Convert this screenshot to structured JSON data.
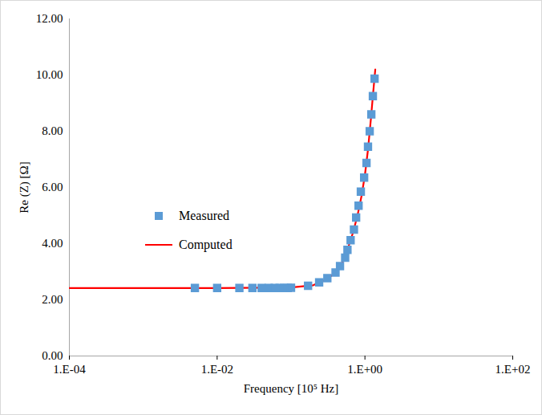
{
  "chart_data": {
    "type": "scatter",
    "x_label": "Frequency [10⁵ Hz]",
    "y_label": "Re (Z) [Ω]",
    "log": "x",
    "grid": false,
    "legend": "left",
    "xlim": [
      0.0001,
      100
    ],
    "xticks": [
      {
        "value": 0.0001,
        "label": "1.E-04"
      },
      {
        "value": 0.01,
        "label": "1.E-02"
      },
      {
        "value": 1,
        "label": "1.E+00"
      },
      {
        "value": 100,
        "label": "1.E+02"
      }
    ],
    "ylim": [
      0,
      12
    ],
    "yticks": [
      {
        "value": 0,
        "label": "0.00"
      },
      {
        "value": 2,
        "label": "2.00"
      },
      {
        "value": 4,
        "label": "4.00"
      },
      {
        "value": 6,
        "label": "6.00"
      },
      {
        "value": 8,
        "label": "8.00"
      },
      {
        "value": 10,
        "label": "10.00"
      },
      {
        "value": 12,
        "label": "12.00"
      }
    ],
    "series": [
      {
        "name": "Measured",
        "type": "scatter",
        "marker": "square",
        "color": "#5b9bd5",
        "x": [
          0.005,
          0.01,
          0.02,
          0.03,
          0.04,
          0.05,
          0.06,
          0.07,
          0.08,
          0.09,
          0.1,
          0.17,
          0.24,
          0.31,
          0.4,
          0.46,
          0.54,
          0.58,
          0.64,
          0.71,
          0.76,
          0.82,
          0.88,
          0.975,
          1.05,
          1.1,
          1.16,
          1.22,
          1.28,
          1.35
        ],
        "values": [
          2.42,
          2.42,
          2.42,
          2.42,
          2.42,
          2.42,
          2.42,
          2.42,
          2.42,
          2.42,
          2.43,
          2.5,
          2.62,
          2.77,
          2.97,
          3.2,
          3.5,
          3.78,
          4.12,
          4.5,
          4.93,
          5.35,
          5.85,
          6.35,
          6.87,
          7.45,
          8.0,
          8.6,
          9.25,
          9.87
        ]
      },
      {
        "name": "Computed",
        "type": "line",
        "line_style": "solid",
        "color": "#ff0000",
        "x": [
          0.0001,
          0.01,
          0.1,
          0.2,
          0.3,
          0.4,
          0.5,
          0.6,
          0.7,
          0.8,
          0.9,
          1.0,
          1.1,
          1.2,
          1.3,
          1.38
        ],
        "values": [
          2.42,
          2.42,
          2.44,
          2.52,
          2.72,
          2.97,
          3.35,
          3.9,
          4.45,
          5.05,
          5.7,
          6.45,
          7.35,
          8.4,
          9.45,
          10.2
        ]
      }
    ]
  }
}
